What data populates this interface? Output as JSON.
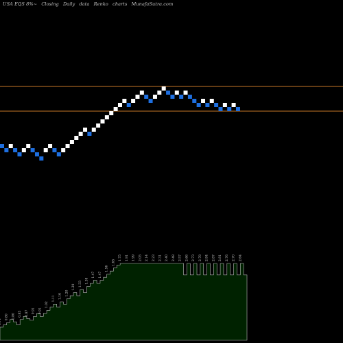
{
  "header": {
    "ticker": "USA EQS 8%~",
    "mode": "Closing",
    "interval": "Daily",
    "datatype": "data",
    "charttype": "Renko",
    "word": "charts",
    "site": "MunafaSutra.com"
  },
  "colors": {
    "background": "#000000",
    "brick_up": "#ffffff",
    "brick_down": "#1e6fe0",
    "reference_line": "#c87828",
    "volume_fill": "#002200",
    "volume_stroke": "#bfbfbf"
  },
  "chart_data": {
    "type": "renko",
    "reference_lines": [
      2.5,
      1.94
    ],
    "bricks": [
      {
        "level": 0.08,
        "dir": "down"
      },
      {
        "level": 0.03,
        "dir": "down"
      },
      {
        "level": 0.08,
        "dir": "up"
      },
      {
        "level": 0.03,
        "dir": "down"
      },
      {
        "level": -0.02,
        "dir": "down"
      },
      {
        "level": 0.03,
        "dir": "up"
      },
      {
        "level": 0.08,
        "dir": "up"
      },
      {
        "level": 0.03,
        "dir": "down"
      },
      {
        "level": -0.02,
        "dir": "down"
      },
      {
        "level": -0.07,
        "dir": "down"
      },
      {
        "level": 0.03,
        "dir": "up"
      },
      {
        "level": 0.08,
        "dir": "up"
      },
      {
        "level": 0.03,
        "dir": "down"
      },
      {
        "level": -0.02,
        "dir": "down"
      },
      {
        "level": 0.03,
        "dir": "up"
      },
      {
        "level": 0.08,
        "dir": "up"
      },
      {
        "level": 0.13,
        "dir": "up"
      },
      {
        "level": 0.18,
        "dir": "up"
      },
      {
        "level": 0.23,
        "dir": "up"
      },
      {
        "level": 0.28,
        "dir": "up"
      },
      {
        "level": 0.23,
        "dir": "down"
      },
      {
        "level": 0.28,
        "dir": "up"
      },
      {
        "level": 0.33,
        "dir": "up"
      },
      {
        "level": 0.38,
        "dir": "up"
      },
      {
        "level": 0.43,
        "dir": "up"
      },
      {
        "level": 0.48,
        "dir": "up"
      },
      {
        "level": 0.53,
        "dir": "up"
      },
      {
        "level": 0.58,
        "dir": "up"
      },
      {
        "level": 0.63,
        "dir": "up"
      },
      {
        "level": 0.58,
        "dir": "down"
      },
      {
        "level": 0.63,
        "dir": "up"
      },
      {
        "level": 0.68,
        "dir": "up"
      },
      {
        "level": 0.73,
        "dir": "up"
      },
      {
        "level": 0.68,
        "dir": "down"
      },
      {
        "level": 0.63,
        "dir": "down"
      },
      {
        "level": 0.68,
        "dir": "up"
      },
      {
        "level": 0.73,
        "dir": "up"
      },
      {
        "level": 0.78,
        "dir": "up"
      },
      {
        "level": 0.73,
        "dir": "down"
      },
      {
        "level": 0.68,
        "dir": "down"
      },
      {
        "level": 0.73,
        "dir": "up"
      },
      {
        "level": 0.68,
        "dir": "down"
      },
      {
        "level": 0.73,
        "dir": "up"
      },
      {
        "level": 0.68,
        "dir": "down"
      },
      {
        "level": 0.63,
        "dir": "down"
      },
      {
        "level": 0.58,
        "dir": "down"
      },
      {
        "level": 0.63,
        "dir": "up"
      },
      {
        "level": 0.58,
        "dir": "down"
      },
      {
        "level": 0.63,
        "dir": "up"
      },
      {
        "level": 0.58,
        "dir": "down"
      },
      {
        "level": 0.53,
        "dir": "down"
      },
      {
        "level": 0.58,
        "dir": "up"
      },
      {
        "level": 0.53,
        "dir": "down"
      },
      {
        "level": 0.58,
        "dir": "up"
      },
      {
        "level": 0.53,
        "dir": "down"
      }
    ],
    "volume_labels": [
      "0.71",
      "0.76",
      "0.80",
      "0.85",
      "0.80",
      "0.76",
      "0.85",
      "0.91",
      "0.87",
      "0.85",
      "0.91",
      "0.96",
      "0.91",
      "0.96",
      "1.02",
      "1.07",
      "1.11",
      "1.07",
      "1.16",
      "1.11",
      "1.20",
      "1.25",
      "1.29",
      "1.25",
      "1.33",
      "1.29",
      "1.38",
      "1.42",
      "1.47",
      "1.42",
      "1.47",
      "1.51",
      "1.56",
      "1.60",
      "1.65",
      "1.69",
      "1.75",
      "1.82",
      "1.91",
      "1.95",
      "1.99",
      "2.02",
      "2.05",
      "2.10",
      "2.14",
      "2.19",
      "2.23",
      "2.27",
      "2.31",
      "2.35",
      "2.40",
      "2.44",
      "2.48",
      "2.53",
      "2.57",
      "2.61",
      "2.66",
      "2.70",
      "2.73",
      "2.75",
      "2.78",
      "2.81",
      "2.84",
      "2.86",
      "2.87",
      "2.84",
      "2.81",
      "2.78",
      "2.76",
      "2.73",
      "2.70",
      "2.67",
      "2.64",
      "2.61",
      "2.58",
      "2.55",
      "2.52",
      "2.49",
      "2.45",
      "2.43",
      "2.40",
      "2.37",
      "2.34",
      "2.31",
      "2.27",
      "2.24",
      "2.21",
      "2.18",
      "2.15",
      "2.12",
      "2.09",
      "2.06",
      "2.03",
      "2.00",
      "1.97",
      "1.94",
      "1.91",
      "1.88",
      "1.85",
      "1.82",
      "1.78",
      "1.75",
      "1.72",
      "1.69",
      "1.66",
      "1.63",
      "1.60",
      "1.57",
      "1.54",
      "1.51",
      "1.48",
      "1.45",
      "1.42",
      "1.39",
      "1.36",
      "1.33",
      "1.30",
      "1.27",
      "1.24",
      "1.21",
      "1.18",
      "1.15",
      "1.12",
      "1.09",
      "1.06",
      "1.03",
      "1.00",
      "1.00",
      "1.00",
      "1.00",
      "1.00",
      "1.00",
      "1.00",
      "1.00",
      "1.00",
      "1.00",
      "1.00",
      "1.00",
      "1.00",
      "1.00",
      "1.00",
      "1.00",
      "1.00",
      "1.00",
      "1.00",
      "1.00",
      "1.00",
      "1.00",
      "1.00",
      "1.00",
      "1.00",
      "1.00",
      "1.00",
      "1.00",
      "1.00",
      "1.00",
      "1.00"
    ],
    "volume_profile": [
      0.17,
      0.2,
      0.23,
      0.27,
      0.24,
      0.2,
      0.27,
      0.31,
      0.28,
      0.26,
      0.31,
      0.35,
      0.31,
      0.35,
      0.39,
      0.43,
      0.47,
      0.43,
      0.5,
      0.47,
      0.54,
      0.58,
      0.62,
      0.58,
      0.66,
      0.62,
      0.7,
      0.74,
      0.78,
      0.74,
      0.78,
      0.82,
      0.86,
      0.9,
      0.94,
      0.98,
      1.0,
      1.0,
      1.0,
      1.0,
      1.0,
      1.0,
      1.0,
      1.0,
      1.0,
      1.0,
      1.0,
      1.0,
      1.0,
      1.0,
      1.0,
      1.0,
      1.0,
      1.0,
      1.0,
      0.85,
      1.0,
      0.85,
      1.0,
      0.85,
      1.0,
      0.85,
      1.0,
      0.85,
      1.0,
      0.85,
      1.0,
      0.85,
      1.0,
      0.85,
      1.0,
      0.85,
      1.0,
      0.85
    ]
  }
}
